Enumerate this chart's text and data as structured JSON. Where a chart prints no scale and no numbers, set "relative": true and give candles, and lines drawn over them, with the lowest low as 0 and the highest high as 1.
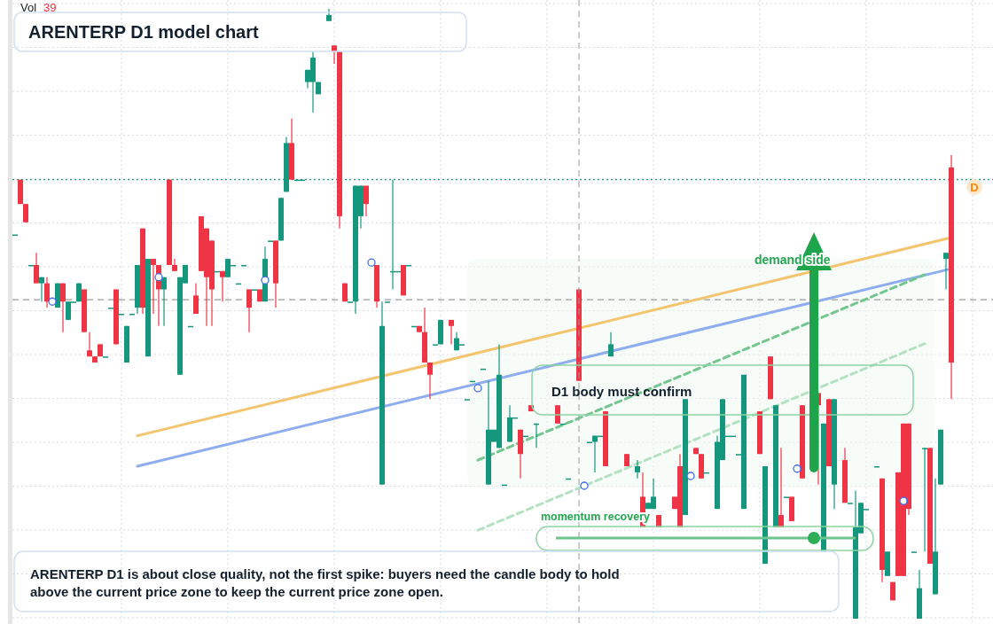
{
  "chart_data": {
    "type": "candlestick",
    "title": "ARENTERP D1 model chart",
    "relative": true,
    "tick_labels": false,
    "grid": true,
    "legend": false,
    "categories": [
      null,
      null,
      null,
      null,
      null,
      null,
      null,
      null,
      null,
      null,
      null,
      null,
      null,
      null,
      null,
      null,
      null,
      null,
      null,
      null,
      null,
      null,
      null,
      null,
      null,
      null,
      null,
      null,
      null,
      null,
      null,
      null,
      null,
      null,
      null,
      null,
      null,
      null,
      null,
      null,
      null,
      null,
      null,
      null,
      null,
      null,
      null,
      null,
      null,
      null,
      null,
      null,
      null,
      null,
      null,
      null,
      null,
      null,
      null,
      null,
      null,
      null,
      null,
      null,
      null,
      null,
      null,
      null,
      null,
      null,
      null,
      null,
      null,
      null,
      null,
      null,
      null,
      null,
      null,
      null,
      null,
      null,
      null,
      null,
      null,
      null,
      null,
      null,
      null,
      null,
      null,
      null,
      null,
      null,
      null,
      null,
      null,
      null,
      null,
      null,
      null,
      null,
      null,
      null,
      null,
      null,
      null,
      null,
      null,
      null,
      null,
      null,
      null,
      null,
      null,
      null,
      null,
      null,
      null,
      null,
      null,
      null,
      null,
      null,
      null,
      null,
      null,
      null,
      null,
      null,
      null,
      null,
      null,
      null,
      null,
      null,
      null,
      null,
      null,
      null,
      null,
      null,
      null,
      null,
      null,
      null,
      null,
      null,
      null,
      null,
      null,
      null,
      null,
      null,
      null,
      null,
      null,
      null,
      null,
      null,
      null,
      null,
      null,
      null,
      null,
      null,
      null,
      null,
      null,
      null,
      null,
      null,
      null,
      null,
      null,
      null,
      null
    ],
    "ohlc": [
      [
        0.63,
        0.63,
        0.63,
        0.63
      ],
      [
        0.72,
        0.72,
        0.68,
        0.68
      ],
      [
        0.68,
        0.68,
        0.65,
        0.65
      ],
      [
        0.58,
        0.58,
        0.58,
        0.58
      ],
      [
        0.58,
        0.6,
        0.55,
        0.55
      ],
      [
        0.55,
        0.56,
        0.52,
        0.56
      ],
      [
        0.55,
        0.56,
        0.51,
        0.52
      ],
      null,
      [
        0.51,
        0.55,
        0.51,
        0.55
      ],
      [
        0.55,
        0.55,
        0.47,
        0.52
      ],
      [
        0.49,
        0.52,
        0.49,
        0.52
      ],
      [
        0.52,
        0.52,
        0.52,
        0.52
      ],
      [
        0.52,
        0.55,
        0.52,
        0.55
      ],
      [
        0.54,
        0.54,
        0.47,
        0.47
      ],
      [
        0.44,
        0.47,
        0.43,
        0.43
      ],
      [
        0.43,
        0.43,
        0.42,
        0.42
      ],
      [
        0.45,
        0.45,
        0.43,
        0.43
      ],
      [
        0.43,
        0.43,
        0.43,
        0.43
      ],
      [
        0.51,
        0.51,
        0.51,
        0.51
      ],
      [
        0.54,
        0.54,
        0.45,
        0.45
      ],
      [
        0.5,
        0.5,
        0.5,
        0.5
      ],
      [
        0.42,
        0.48,
        0.42,
        0.48
      ],
      [
        0.5,
        0.5,
        0.5,
        0.5
      ],
      [
        0.51,
        0.58,
        0.5,
        0.58
      ],
      [
        0.64,
        0.64,
        0.5,
        0.51
      ],
      [
        0.43,
        0.59,
        0.43,
        0.59
      ],
      [
        0.59,
        0.59,
        0.5,
        0.58
      ],
      [
        0.58,
        0.58,
        0.48,
        0.54
      ],
      [
        0.54,
        0.56,
        0.48,
        0.56
      ],
      [
        0.72,
        0.72,
        0.58,
        0.58
      ],
      [
        0.58,
        0.59,
        0.57,
        0.57
      ],
      [
        0.4,
        0.56,
        0.4,
        0.56
      ],
      [
        0.55,
        0.58,
        0.55,
        0.58
      ],
      [
        0.48,
        0.48,
        0.48,
        0.48
      ],
      [
        0.53,
        0.55,
        0.5,
        0.5
      ],
      [
        0.66,
        0.66,
        0.57,
        0.57
      ],
      [
        0.64,
        0.64,
        0.48,
        0.56
      ],
      [
        0.62,
        0.62,
        0.48,
        0.54
      ],
      [
        0.57,
        0.57,
        0.57,
        0.57
      ],
      [
        0.57,
        0.57,
        0.52,
        0.56
      ],
      [
        0.56,
        0.59,
        0.56,
        0.59
      ],
      [
        0.58,
        0.58,
        0.58,
        0.58
      ],
      [
        0.55,
        0.55,
        0.55,
        0.55
      ],
      [
        0.58,
        0.58,
        0.58,
        0.58
      ],
      [
        0.54,
        0.54,
        0.47,
        0.51
      ],
      [
        0.54,
        0.54,
        0.54,
        0.54
      ],
      [
        0.54,
        0.54,
        0.52,
        0.52
      ],
      [
        0.52,
        0.61,
        0.52,
        0.59
      ],
      [
        0.62,
        0.62,
        0.62,
        0.62
      ],
      [
        0.62,
        0.62,
        0.51,
        0.55
      ],
      [
        0.62,
        0.69,
        0.62,
        0.69
      ],
      [
        0.7,
        0.79,
        0.7,
        0.78
      ],
      [
        0.78,
        0.82,
        0.72,
        0.72
      ],
      [
        0.72,
        0.72,
        0.72,
        0.72
      ],
      [
        0.72,
        0.72,
        0.72,
        0.72
      ],
      [
        0.88,
        0.9,
        0.87,
        0.9
      ],
      [
        0.88,
        0.93,
        0.83,
        0.92
      ],
      [
        0.86,
        0.88,
        0.86,
        0.88
      ],
      null,
      [
        0.98,
        1,
        0.98,
        0.99
      ],
      [
        0.94,
        0.94,
        0.91,
        0.93
      ],
      [
        0.93,
        0.93,
        0.64,
        0.66
      ],
      [
        0.55,
        0.55,
        0.52,
        0.52
      ],
      [
        0.52,
        0.52,
        0.52,
        0.52
      ],
      [
        0.52,
        0.71,
        0.5,
        0.71
      ],
      [
        0.66,
        0.71,
        0.64,
        0.71
      ],
      [
        0.71,
        0.71,
        0.66,
        0.68
      ],
      null,
      [
        0.58,
        0.58,
        0.51,
        0.52
      ],
      [
        0.22,
        0.52,
        0.22,
        0.48
      ],
      [
        0.52,
        0.52,
        0.52,
        0.52
      ],
      [
        0.57,
        0.72,
        0.54,
        0.57
      ],
      [
        0.57,
        0.57,
        0.57,
        0.57
      ],
      [
        0.58,
        0.58,
        0.53,
        0.53
      ],
      [
        0.58,
        0.58,
        0.58,
        0.58
      ],
      [
        0.48,
        0.48,
        0.48,
        0.48
      ],
      [
        0.48,
        0.48,
        0.47,
        0.47
      ],
      [
        0.47,
        0.51,
        0.42,
        0.42
      ],
      [
        0.42,
        0.42,
        0.36,
        0.4
      ],
      [
        0.45,
        0.45,
        0.45,
        0.45
      ],
      [
        0.45,
        0.49,
        0.45,
        0.49
      ],
      null,
      [
        0.49,
        0.49,
        0.45,
        0.48
      ],
      [
        0.44,
        0.47,
        0.44,
        0.46
      ],
      [
        0.45,
        0.45,
        0.45,
        0.45
      ],
      [
        0.36,
        0.36,
        0.36,
        0.36
      ],
      [
        0.39,
        0.39,
        0.39,
        0.39
      ],
      null,
      [
        0.41,
        0.41,
        0.41,
        0.41
      ],
      [
        0.22,
        0.39,
        0.22,
        0.31
      ],
      [
        0.29,
        0.31,
        0.29,
        0.31
      ],
      [
        0.28,
        0.45,
        0.28,
        0.4
      ],
      [
        0.22,
        0.22,
        0.22,
        0.22
      ],
      [
        0.29,
        0.35,
        0.29,
        0.33
      ],
      [
        0.33,
        0.33,
        0.33,
        0.33
      ],
      [
        0.31,
        0.31,
        0.23,
        0.27
      ],
      [
        0.3,
        0.3,
        0.3,
        0.3
      ],
      [
        0.35,
        0.35,
        0.34,
        0.34
      ],
      [
        0.32,
        0.32,
        0.28,
        0.32
      ],
      null,
      null,
      null,
      [
        0.35,
        0.35,
        0.32,
        0.32
      ],
      [
        0.32,
        0.32,
        0.32,
        0.32
      ],
      [
        0.23,
        0.23,
        0.23,
        0.23
      ],
      null,
      [
        0.54,
        0.54,
        0.39,
        0.39
      ],
      null,
      [
        0.29,
        0.29,
        0.29,
        0.29
      ],
      [
        0.29,
        0.3,
        0.24,
        0.3
      ],
      [
        0.3,
        0.3,
        0.3,
        0.3
      ],
      [
        0.34,
        0.34,
        0.25,
        0.25
      ],
      [
        0.43,
        0.47,
        0.43,
        0.45
      ],
      null,
      null,
      [
        0.27,
        0.27,
        0.25,
        0.25
      ],
      null,
      [
        0.24,
        0.26,
        0.23,
        0.25
      ],
      [
        0.2,
        0.24,
        0.15,
        0.15
      ],
      [
        0.18,
        0.19,
        0.18,
        0.19
      ],
      [
        0.18,
        0.23,
        0.18,
        0.2
      ],
      [
        0.17,
        0.17,
        0.15,
        0.15
      ],
      null,
      null,
      [
        0.2,
        0.2,
        0.18,
        0.18
      ],
      [
        0.25,
        0.27,
        0.15,
        0.15
      ],
      [
        0.17,
        0.36,
        0.17,
        0.36
      ],
      null,
      [
        0.28,
        0.28,
        0.27,
        0.27
      ],
      [
        0.27,
        0.27,
        0.23,
        0.23
      ],
      [
        0.24,
        0.24,
        0.24,
        0.24
      ],
      null,
      [
        0.18,
        0.3,
        0.18,
        0.29
      ],
      [
        0.26,
        0.36,
        0.26,
        0.36
      ],
      [
        0.3,
        0.3,
        0.3,
        0.3
      ],
      [
        0.3,
        0.3,
        0.3,
        0.3
      ],
      [
        0.27,
        0.27,
        0.27,
        0.27
      ],
      [
        0.18,
        0.4,
        0.18,
        0.4
      ],
      null,
      null,
      [
        0.34,
        0.34,
        0.27,
        0.27
      ],
      [
        0.09,
        0.25,
        0.09,
        0.25
      ],
      [
        0.43,
        0.43,
        0.36,
        0.36
      ],
      [
        0.15,
        0.35,
        0.15,
        0.35
      ],
      [
        0.17,
        0.28,
        0.15,
        0.15
      ],
      [
        0.2,
        0.2,
        0.2,
        0.2
      ],
      [
        0.2,
        0.2,
        0.16,
        0.16
      ],
      null,
      [
        0.35,
        0.35,
        0.23,
        0.23
      ],
      null,
      null,
      [
        0.37,
        0.37,
        0.22,
        0.35
      ],
      [
        0.11,
        0.32,
        0.11,
        0.32
      ],
      [
        0.36,
        0.36,
        0.25,
        0.25
      ],
      [
        0.22,
        0.36,
        0.18,
        0.36
      ],
      null,
      [
        0.26,
        0.28,
        0.19,
        0.19
      ],
      [
        0.19,
        0.19,
        0.19,
        0.19
      ],
      [
        0,
        0.21,
        0,
        0.15
      ],
      [
        0.14,
        0.19,
        0.14,
        0.19
      ],
      [
        0.18,
        0.18,
        0.18,
        0.18
      ],
      null,
      [
        0.25,
        0.25,
        0.25,
        0.25
      ],
      [
        0.23,
        0.23,
        0.06,
        0.08
      ],
      [
        0.07,
        0.11,
        0.07,
        0.11
      ],
      [
        0.06,
        0.06,
        0.03,
        0.03
      ],
      [
        0.24,
        0.24,
        0.07,
        0.07
      ],
      [
        0.32,
        0.32,
        0.07,
        0.07
      ],
      [
        0.32,
        0.32,
        0.17,
        0.18
      ],
      [
        0.11,
        0.11,
        0.11,
        0.11
      ],
      [
        0,
        0.08,
        0,
        0.05
      ],
      [
        0.28,
        0.28,
        0.11,
        0.28
      ],
      [
        0.28,
        0.28,
        0.09,
        0.09
      ],
      [
        0.04,
        0.23,
        0.04,
        0.11
      ],
      [
        0.22,
        0.31,
        0.22,
        0.31
      ],
      [
        0.59,
        0.6,
        0.54,
        0.6
      ],
      [
        0.74,
        0.76,
        0.36,
        0.42
      ]
    ],
    "series": [
      {
        "type": "line",
        "color": "#f5c46e",
        "values": [
          null,
          null,
          null,
          null,
          null,
          null,
          null,
          null,
          null,
          null,
          null,
          null,
          null,
          null,
          null,
          null,
          null,
          null,
          null,
          null,
          null,
          null,
          null,
          0.3,
          null,
          null,
          null,
          null,
          null,
          null,
          null,
          null,
          null,
          null,
          null,
          null,
          null,
          null,
          null,
          null,
          null,
          null,
          null,
          null,
          null,
          null,
          null,
          null,
          null,
          null,
          null,
          null,
          null,
          null,
          null,
          null,
          null,
          null,
          null,
          null,
          null,
          null,
          null,
          null,
          null,
          null,
          null,
          null,
          null,
          null,
          null,
          null,
          null,
          null,
          null,
          null,
          null,
          null,
          null,
          null,
          null,
          null,
          null,
          null,
          null,
          null,
          null,
          null,
          null,
          null,
          null,
          null,
          null,
          null,
          null,
          null,
          null,
          null,
          null,
          null,
          null,
          null,
          null,
          null,
          null,
          null,
          null,
          null,
          null,
          null,
          null,
          null,
          null,
          null,
          null,
          null,
          null,
          null,
          null,
          null,
          null,
          null,
          null,
          null,
          null,
          null,
          null,
          null,
          null,
          null,
          null,
          null,
          null,
          null,
          null,
          null,
          null,
          null,
          null,
          null,
          null,
          null,
          null,
          null,
          null,
          null,
          null,
          null,
          null,
          null,
          null,
          null,
          null,
          null,
          null,
          null,
          null,
          null,
          null,
          null,
          null,
          null,
          null,
          null,
          null,
          null,
          null,
          null,
          null,
          null,
          null,
          null,
          null,
          null,
          null,
          null,
          0.625
        ]
      },
      {
        "type": "line",
        "color": "#8eadf0",
        "values": [
          null,
          null,
          null,
          null,
          null,
          null,
          null,
          null,
          null,
          null,
          null,
          null,
          null,
          null,
          null,
          null,
          null,
          null,
          null,
          null,
          null,
          null,
          null,
          0.25,
          null,
          null,
          null,
          null,
          null,
          null,
          null,
          null,
          null,
          null,
          null,
          null,
          null,
          null,
          null,
          null,
          null,
          null,
          null,
          null,
          null,
          null,
          null,
          null,
          null,
          null,
          null,
          null,
          null,
          null,
          null,
          null,
          null,
          null,
          null,
          null,
          null,
          null,
          null,
          null,
          null,
          null,
          null,
          null,
          null,
          null,
          null,
          null,
          null,
          null,
          null,
          null,
          null,
          null,
          null,
          null,
          null,
          null,
          null,
          null,
          null,
          null,
          null,
          null,
          null,
          null,
          null,
          null,
          null,
          null,
          null,
          null,
          null,
          null,
          null,
          null,
          null,
          null,
          null,
          null,
          null,
          null,
          null,
          null,
          null,
          null,
          null,
          null,
          null,
          null,
          null,
          null,
          null,
          null,
          null,
          null,
          null,
          null,
          null,
          null,
          null,
          null,
          null,
          null,
          null,
          null,
          null,
          null,
          null,
          null,
          null,
          null,
          null,
          null,
          null,
          null,
          null,
          null,
          null,
          null,
          null,
          null,
          null,
          null,
          null,
          null,
          null,
          null,
          null,
          null,
          null,
          null,
          null,
          null,
          null,
          null,
          null,
          null,
          null,
          null,
          null,
          null,
          null,
          null,
          null,
          null,
          null,
          null,
          null,
          null,
          null,
          null,
          0.574
        ]
      },
      {
        "type": "line",
        "color": "#72c68e",
        "line_style": "dashed",
        "values": [
          null,
          null,
          null,
          null,
          null,
          null,
          null,
          null,
          null,
          null,
          null,
          null,
          null,
          null,
          null,
          null,
          null,
          null,
          null,
          null,
          null,
          null,
          null,
          null,
          null,
          null,
          null,
          null,
          null,
          null,
          null,
          null,
          null,
          null,
          null,
          null,
          null,
          null,
          null,
          null,
          null,
          null,
          null,
          null,
          null,
          null,
          null,
          null,
          null,
          null,
          null,
          null,
          null,
          null,
          null,
          null,
          null,
          null,
          null,
          null,
          null,
          null,
          null,
          null,
          null,
          null,
          null,
          null,
          null,
          null,
          null,
          null,
          null,
          null,
          null,
          null,
          null,
          null,
          null,
          null,
          null,
          null,
          null,
          null,
          null,
          null,
          null,
          0.26,
          null,
          null,
          null,
          null,
          null,
          null,
          null,
          null,
          null,
          null,
          null,
          null,
          null,
          null,
          null,
          null,
          null,
          null,
          null,
          null,
          null,
          null,
          null,
          null,
          null,
          null,
          null,
          null,
          null,
          null,
          null,
          null,
          null,
          null,
          null,
          null,
          null,
          null,
          null,
          null,
          null,
          null,
          null,
          null,
          null,
          null,
          null,
          null,
          null,
          null,
          null,
          null,
          null,
          null,
          null,
          null,
          null,
          null,
          null,
          null,
          null,
          null,
          null,
          null,
          null,
          null,
          null,
          null,
          null,
          null,
          null,
          null,
          null,
          null,
          null,
          null,
          null,
          null,
          null,
          null,
          null,
          null,
          null,
          0.564,
          null,
          null,
          null,
          null,
          null
        ]
      },
      {
        "type": "line",
        "color": "#b3e2c0",
        "line_style": "dashed",
        "values": [
          null,
          null,
          null,
          null,
          null,
          null,
          null,
          null,
          null,
          null,
          null,
          null,
          null,
          null,
          null,
          null,
          null,
          null,
          null,
          null,
          null,
          null,
          null,
          null,
          null,
          null,
          null,
          null,
          null,
          null,
          null,
          null,
          null,
          null,
          null,
          null,
          null,
          null,
          null,
          null,
          null,
          null,
          null,
          null,
          null,
          null,
          null,
          null,
          null,
          null,
          null,
          null,
          null,
          null,
          null,
          null,
          null,
          null,
          null,
          null,
          null,
          null,
          null,
          null,
          null,
          null,
          null,
          null,
          null,
          null,
          null,
          null,
          null,
          null,
          null,
          null,
          null,
          null,
          null,
          null,
          null,
          null,
          null,
          null,
          null,
          null,
          null,
          0.145,
          null,
          null,
          null,
          null,
          null,
          null,
          null,
          null,
          null,
          null,
          null,
          null,
          null,
          null,
          null,
          null,
          null,
          null,
          null,
          null,
          null,
          null,
          null,
          null,
          null,
          null,
          null,
          null,
          null,
          null,
          null,
          null,
          null,
          null,
          null,
          null,
          null,
          null,
          null,
          null,
          null,
          null,
          null,
          null,
          null,
          null,
          null,
          null,
          null,
          null,
          null,
          null,
          null,
          null,
          null,
          null,
          null,
          null,
          null,
          null,
          null,
          null,
          null,
          null,
          null,
          null,
          null,
          null,
          null,
          null,
          null,
          null,
          null,
          null,
          null,
          null,
          null,
          null,
          null,
          null,
          null,
          null,
          null,
          0.451,
          null,
          null,
          null,
          null,
          null
        ]
      },
      {
        "type": "scatter",
        "color": "#3d6cf0",
        "marker": "circle",
        "values": [
          null,
          null,
          null,
          null,
          null,
          null,
          null,
          0.52,
          null,
          null,
          null,
          null,
          null,
          null,
          null,
          null,
          null,
          null,
          null,
          null,
          null,
          null,
          null,
          null,
          null,
          null,
          null,
          0.56,
          null,
          null,
          null,
          null,
          null,
          null,
          null,
          null,
          null,
          null,
          null,
          null,
          null,
          null,
          null,
          null,
          null,
          null,
          null,
          0.555,
          null,
          null,
          null,
          null,
          null,
          null,
          null,
          null,
          null,
          null,
          null,
          null,
          null,
          null,
          null,
          null,
          null,
          null,
          null,
          0.584,
          null,
          null,
          null,
          null,
          null,
          null,
          null,
          null,
          null,
          null,
          null,
          null,
          null,
          null,
          null,
          null,
          null,
          null,
          null,
          0.378,
          null,
          null,
          null,
          null,
          null,
          null,
          null,
          null,
          null,
          null,
          null,
          null,
          null,
          null,
          null,
          null,
          null,
          null,
          null,
          0.218,
          null,
          null,
          null,
          null,
          null,
          null,
          null,
          null,
          null,
          null,
          null,
          null,
          null,
          null,
          null,
          null,
          null,
          null,
          null,
          0.234,
          null,
          null,
          null,
          null,
          null,
          null,
          null,
          null,
          null,
          null,
          null,
          null,
          null,
          null,
          null,
          null,
          null,
          null,
          null,
          0.246,
          null,
          null,
          null,
          null,
          null,
          null,
          null,
          null,
          null,
          null,
          null,
          null,
          null,
          null,
          null,
          null,
          null,
          null,
          null,
          0.193,
          null,
          null,
          null,
          null,
          null,
          null,
          null,
          null,
          null
        ]
      }
    ],
    "ref_lines": [
      {
        "axis": "y",
        "value": 0.72,
        "color": "#1a9a80",
        "line_style": "dotted"
      },
      {
        "axis": "y",
        "value": 0.523,
        "color": "#9a9a9a",
        "line_style": "dashed"
      }
    ],
    "annotations": [
      "Vol",
      "39",
      "D1 body must confirm",
      "demand side",
      "momentum recovery",
      "D",
      "ARENTERP D1 is about close quality, not the first spike: buyers need the candle body to hold above the current price zone to keep the current price zone open."
    ]
  }
}
